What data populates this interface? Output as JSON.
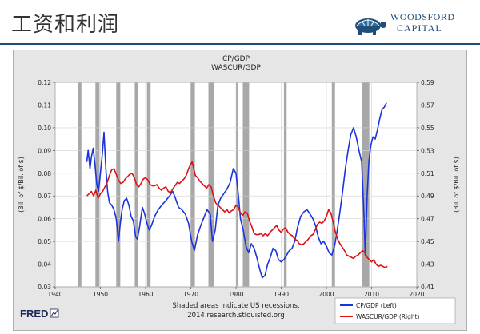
{
  "slide": {
    "title": "工资和利润",
    "logo_name": "WOODSFORD",
    "logo_sub": "CAPITAL"
  },
  "chart_data": {
    "type": "line",
    "title_lines": [
      "CP/GDP",
      "WASCUR/GDP"
    ],
    "y_left_label": "(Bil. of $/Bil. of $)",
    "y_right_label": "(Bil. of $/Bil. of $)",
    "xlim": [
      1940,
      2020
    ],
    "ylim_left": [
      0.03,
      0.12
    ],
    "ylim_right": [
      0.41,
      0.59
    ],
    "x_ticks": [
      1940,
      1950,
      1960,
      1970,
      1980,
      1990,
      2000,
      2010,
      2020
    ],
    "y_left_ticks": [
      "0.03",
      "0.04",
      "0.05",
      "0.06",
      "0.07",
      "0.08",
      "0.09",
      "0.10",
      "0.11",
      "0.12"
    ],
    "y_right_ticks": [
      "0.41",
      "0.43",
      "0.45",
      "0.47",
      "0.49",
      "0.51",
      "0.53",
      "0.55",
      "0.57",
      "0.59"
    ],
    "recessions": [
      [
        1945.1,
        1945.8
      ],
      [
        1948.9,
        1949.8
      ],
      [
        1953.5,
        1954.4
      ],
      [
        1957.6,
        1958.3
      ],
      [
        1960.3,
        1961.1
      ],
      [
        1969.9,
        1970.9
      ],
      [
        1973.9,
        1975.2
      ],
      [
        1980.0,
        1980.5
      ],
      [
        1981.5,
        1982.9
      ],
      [
        1990.6,
        1991.2
      ],
      [
        2001.2,
        2001.9
      ],
      [
        2007.9,
        2009.5
      ]
    ],
    "series": [
      {
        "name": "CP/GDP (Left)",
        "axis": "left",
        "color": "#1a33dd",
        "points": [
          [
            1947.0,
            0.085
          ],
          [
            1947.3,
            0.09
          ],
          [
            1947.7,
            0.082
          ],
          [
            1948.0,
            0.087
          ],
          [
            1948.4,
            0.091
          ],
          [
            1948.8,
            0.084
          ],
          [
            1949.2,
            0.075
          ],
          [
            1949.6,
            0.072
          ],
          [
            1950.0,
            0.08
          ],
          [
            1950.4,
            0.088
          ],
          [
            1950.8,
            0.098
          ],
          [
            1951.2,
            0.082
          ],
          [
            1951.6,
            0.072
          ],
          [
            1952.0,
            0.067
          ],
          [
            1952.5,
            0.066
          ],
          [
            1953.0,
            0.064
          ],
          [
            1953.5,
            0.06
          ],
          [
            1954.0,
            0.05
          ],
          [
            1954.4,
            0.058
          ],
          [
            1954.8,
            0.064
          ],
          [
            1955.3,
            0.068
          ],
          [
            1955.8,
            0.069
          ],
          [
            1956.3,
            0.066
          ],
          [
            1956.8,
            0.061
          ],
          [
            1957.3,
            0.059
          ],
          [
            1957.8,
            0.052
          ],
          [
            1958.2,
            0.051
          ],
          [
            1958.7,
            0.057
          ],
          [
            1959.3,
            0.065
          ],
          [
            1959.8,
            0.062
          ],
          [
            1960.3,
            0.058
          ],
          [
            1960.8,
            0.055
          ],
          [
            1961.3,
            0.057
          ],
          [
            1962.0,
            0.061
          ],
          [
            1962.8,
            0.064
          ],
          [
            1963.6,
            0.066
          ],
          [
            1964.5,
            0.068
          ],
          [
            1965.3,
            0.07
          ],
          [
            1966.0,
            0.072
          ],
          [
            1966.6,
            0.069
          ],
          [
            1967.3,
            0.065
          ],
          [
            1968.0,
            0.064
          ],
          [
            1968.8,
            0.062
          ],
          [
            1969.5,
            0.058
          ],
          [
            1970.2,
            0.05
          ],
          [
            1970.8,
            0.046
          ],
          [
            1971.5,
            0.053
          ],
          [
            1972.2,
            0.057
          ],
          [
            1973.0,
            0.061
          ],
          [
            1973.6,
            0.064
          ],
          [
            1974.3,
            0.062
          ],
          [
            1974.8,
            0.05
          ],
          [
            1975.4,
            0.055
          ],
          [
            1976.0,
            0.066
          ],
          [
            1976.6,
            0.069
          ],
          [
            1977.3,
            0.071
          ],
          [
            1978.0,
            0.073
          ],
          [
            1978.7,
            0.076
          ],
          [
            1979.4,
            0.082
          ],
          [
            1980.0,
            0.08
          ],
          [
            1980.5,
            0.071
          ],
          [
            1981.0,
            0.06
          ],
          [
            1981.6,
            0.055
          ],
          [
            1982.2,
            0.048
          ],
          [
            1982.8,
            0.045
          ],
          [
            1983.4,
            0.049
          ],
          [
            1984.0,
            0.047
          ],
          [
            1984.6,
            0.043
          ],
          [
            1985.2,
            0.038
          ],
          [
            1985.8,
            0.034
          ],
          [
            1986.4,
            0.035
          ],
          [
            1987.0,
            0.04
          ],
          [
            1987.6,
            0.043
          ],
          [
            1988.2,
            0.047
          ],
          [
            1988.8,
            0.046
          ],
          [
            1989.4,
            0.042
          ],
          [
            1990.0,
            0.041
          ],
          [
            1990.6,
            0.042
          ],
          [
            1991.2,
            0.044
          ],
          [
            1991.8,
            0.046
          ],
          [
            1992.4,
            0.047
          ],
          [
            1993.0,
            0.05
          ],
          [
            1993.6,
            0.056
          ],
          [
            1994.3,
            0.061
          ],
          [
            1995.0,
            0.063
          ],
          [
            1995.7,
            0.064
          ],
          [
            1996.4,
            0.062
          ],
          [
            1997.0,
            0.06
          ],
          [
            1997.6,
            0.057
          ],
          [
            1998.2,
            0.052
          ],
          [
            1998.8,
            0.049
          ],
          [
            1999.4,
            0.05
          ],
          [
            2000.0,
            0.048
          ],
          [
            2000.6,
            0.045
          ],
          [
            2001.2,
            0.044
          ],
          [
            2001.8,
            0.048
          ],
          [
            2002.4,
            0.055
          ],
          [
            2003.0,
            0.063
          ],
          [
            2003.6,
            0.072
          ],
          [
            2004.2,
            0.082
          ],
          [
            2004.8,
            0.09
          ],
          [
            2005.4,
            0.097
          ],
          [
            2006.0,
            0.1
          ],
          [
            2006.6,
            0.096
          ],
          [
            2007.2,
            0.09
          ],
          [
            2007.8,
            0.085
          ],
          [
            2008.3,
            0.062
          ],
          [
            2008.6,
            0.044
          ],
          [
            2009.0,
            0.07
          ],
          [
            2009.4,
            0.085
          ],
          [
            2009.8,
            0.092
          ],
          [
            2010.3,
            0.096
          ],
          [
            2010.8,
            0.095
          ],
          [
            2011.3,
            0.099
          ],
          [
            2011.8,
            0.104
          ],
          [
            2012.3,
            0.108
          ],
          [
            2012.8,
            0.109
          ],
          [
            2013.3,
            0.111
          ]
        ]
      },
      {
        "name": "WASCUR/GDP (Right)",
        "axis": "right",
        "color": "#dd1111",
        "points": [
          [
            1947.0,
            0.49
          ],
          [
            1947.5,
            0.492
          ],
          [
            1948.0,
            0.494
          ],
          [
            1948.5,
            0.49
          ],
          [
            1949.0,
            0.495
          ],
          [
            1949.5,
            0.488
          ],
          [
            1950.0,
            0.492
          ],
          [
            1950.5,
            0.494
          ],
          [
            1951.0,
            0.498
          ],
          [
            1951.5,
            0.502
          ],
          [
            1952.0,
            0.508
          ],
          [
            1952.5,
            0.513
          ],
          [
            1953.0,
            0.514
          ],
          [
            1953.5,
            0.509
          ],
          [
            1954.0,
            0.504
          ],
          [
            1954.5,
            0.501
          ],
          [
            1955.0,
            0.502
          ],
          [
            1955.5,
            0.505
          ],
          [
            1956.0,
            0.507
          ],
          [
            1956.5,
            0.509
          ],
          [
            1957.0,
            0.51
          ],
          [
            1957.5,
            0.506
          ],
          [
            1958.0,
            0.5
          ],
          [
            1958.5,
            0.498
          ],
          [
            1959.0,
            0.501
          ],
          [
            1959.5,
            0.505
          ],
          [
            1960.0,
            0.506
          ],
          [
            1960.5,
            0.504
          ],
          [
            1961.0,
            0.5
          ],
          [
            1961.5,
            0.499
          ],
          [
            1962.0,
            0.499
          ],
          [
            1962.5,
            0.5
          ],
          [
            1963.0,
            0.497
          ],
          [
            1963.5,
            0.495
          ],
          [
            1964.0,
            0.497
          ],
          [
            1964.5,
            0.498
          ],
          [
            1965.0,
            0.494
          ],
          [
            1965.5,
            0.493
          ],
          [
            1966.0,
            0.496
          ],
          [
            1966.5,
            0.499
          ],
          [
            1967.0,
            0.502
          ],
          [
            1967.5,
            0.501
          ],
          [
            1968.0,
            0.503
          ],
          [
            1968.5,
            0.505
          ],
          [
            1969.0,
            0.508
          ],
          [
            1969.5,
            0.514
          ],
          [
            1970.0,
            0.518
          ],
          [
            1970.3,
            0.52
          ],
          [
            1970.6,
            0.515
          ],
          [
            1971.0,
            0.508
          ],
          [
            1971.5,
            0.506
          ],
          [
            1972.0,
            0.503
          ],
          [
            1972.5,
            0.501
          ],
          [
            1973.0,
            0.499
          ],
          [
            1973.5,
            0.497
          ],
          [
            1974.0,
            0.5
          ],
          [
            1974.5,
            0.498
          ],
          [
            1975.0,
            0.49
          ],
          [
            1975.5,
            0.484
          ],
          [
            1976.0,
            0.482
          ],
          [
            1976.5,
            0.48
          ],
          [
            1977.0,
            0.478
          ],
          [
            1977.5,
            0.476
          ],
          [
            1978.0,
            0.478
          ],
          [
            1978.5,
            0.475
          ],
          [
            1979.0,
            0.477
          ],
          [
            1979.5,
            0.478
          ],
          [
            1980.0,
            0.482
          ],
          [
            1980.5,
            0.48
          ],
          [
            1981.0,
            0.475
          ],
          [
            1981.5,
            0.473
          ],
          [
            1982.0,
            0.476
          ],
          [
            1982.5,
            0.475
          ],
          [
            1983.0,
            0.468
          ],
          [
            1983.5,
            0.463
          ],
          [
            1984.0,
            0.457
          ],
          [
            1984.5,
            0.456
          ],
          [
            1985.0,
            0.456
          ],
          [
            1985.5,
            0.457
          ],
          [
            1986.0,
            0.455
          ],
          [
            1986.5,
            0.457
          ],
          [
            1987.0,
            0.455
          ],
          [
            1987.5,
            0.458
          ],
          [
            1988.0,
            0.46
          ],
          [
            1988.5,
            0.462
          ],
          [
            1989.0,
            0.464
          ],
          [
            1989.5,
            0.46
          ],
          [
            1990.0,
            0.458
          ],
          [
            1990.5,
            0.461
          ],
          [
            1991.0,
            0.462
          ],
          [
            1991.5,
            0.458
          ],
          [
            1992.0,
            0.456
          ],
          [
            1992.5,
            0.455
          ],
          [
            1993.0,
            0.452
          ],
          [
            1993.5,
            0.451
          ],
          [
            1994.0,
            0.448
          ],
          [
            1994.5,
            0.447
          ],
          [
            1995.0,
            0.448
          ],
          [
            1995.5,
            0.45
          ],
          [
            1996.0,
            0.452
          ],
          [
            1996.5,
            0.455
          ],
          [
            1997.0,
            0.456
          ],
          [
            1997.5,
            0.46
          ],
          [
            1998.0,
            0.465
          ],
          [
            1998.5,
            0.467
          ],
          [
            1999.0,
            0.466
          ],
          [
            1999.5,
            0.468
          ],
          [
            2000.0,
            0.472
          ],
          [
            2000.5,
            0.478
          ],
          [
            2001.0,
            0.475
          ],
          [
            2001.5,
            0.467
          ],
          [
            2002.0,
            0.458
          ],
          [
            2002.5,
            0.452
          ],
          [
            2003.0,
            0.448
          ],
          [
            2003.5,
            0.445
          ],
          [
            2004.0,
            0.442
          ],
          [
            2004.5,
            0.438
          ],
          [
            2005.0,
            0.437
          ],
          [
            2005.5,
            0.436
          ],
          [
            2006.0,
            0.435
          ],
          [
            2006.5,
            0.437
          ],
          [
            2007.0,
            0.438
          ],
          [
            2007.5,
            0.44
          ],
          [
            2008.0,
            0.442
          ],
          [
            2008.5,
            0.44
          ],
          [
            2009.0,
            0.436
          ],
          [
            2009.5,
            0.434
          ],
          [
            2010.0,
            0.432
          ],
          [
            2010.5,
            0.434
          ],
          [
            2011.0,
            0.43
          ],
          [
            2011.5,
            0.428
          ],
          [
            2012.0,
            0.429
          ],
          [
            2012.5,
            0.428
          ],
          [
            2013.0,
            0.427
          ],
          [
            2013.5,
            0.428
          ]
        ]
      }
    ],
    "footnote_line1": "Shaded areas indicate US recessions.",
    "footnote_line2": "2014 research.stlouisfed.org",
    "fred_logo": "FRED",
    "legend_position": "bottom-right",
    "recession_color": "#a8a8a8",
    "plot_bg": "#ffffff",
    "grid": true
  }
}
